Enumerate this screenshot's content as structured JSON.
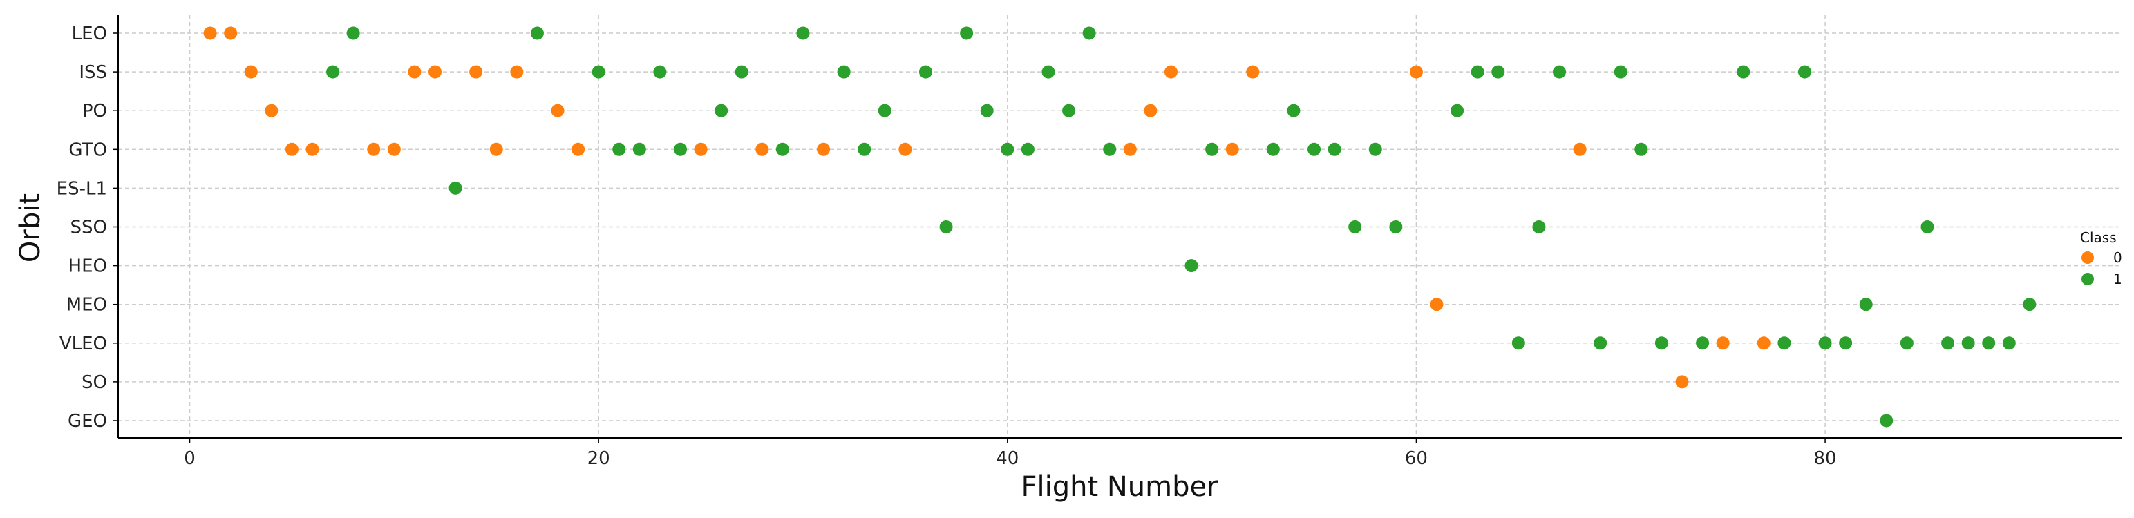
{
  "chart_data": {
    "type": "scatter",
    "xlabel": "Flight Number",
    "ylabel": "Orbit",
    "xlim": [
      -3.5,
      94.5
    ],
    "xticks": [
      0,
      20,
      40,
      60,
      80
    ],
    "categories": [
      "LEO",
      "ISS",
      "PO",
      "GTO",
      "ES-L1",
      "SSO",
      "HEO",
      "MEO",
      "VLEO",
      "SO",
      "GEO"
    ],
    "grid": true,
    "legend": {
      "title": "Class",
      "position": "right"
    },
    "colors": {
      "0": "#ff7f0e",
      "1": "#2ca02c"
    },
    "series": [
      {
        "name": "0",
        "points": [
          {
            "x": 1,
            "y": "LEO"
          },
          {
            "x": 2,
            "y": "LEO"
          },
          {
            "x": 3,
            "y": "ISS"
          },
          {
            "x": 11,
            "y": "ISS"
          },
          {
            "x": 12,
            "y": "ISS"
          },
          {
            "x": 14,
            "y": "ISS"
          },
          {
            "x": 16,
            "y": "ISS"
          },
          {
            "x": 48,
            "y": "ISS"
          },
          {
            "x": 52,
            "y": "ISS"
          },
          {
            "x": 60,
            "y": "ISS"
          },
          {
            "x": 4,
            "y": "PO"
          },
          {
            "x": 18,
            "y": "PO"
          },
          {
            "x": 47,
            "y": "PO"
          },
          {
            "x": 5,
            "y": "GTO"
          },
          {
            "x": 6,
            "y": "GTO"
          },
          {
            "x": 9,
            "y": "GTO"
          },
          {
            "x": 10,
            "y": "GTO"
          },
          {
            "x": 15,
            "y": "GTO"
          },
          {
            "x": 19,
            "y": "GTO"
          },
          {
            "x": 25,
            "y": "GTO"
          },
          {
            "x": 28,
            "y": "GTO"
          },
          {
            "x": 31,
            "y": "GTO"
          },
          {
            "x": 35,
            "y": "GTO"
          },
          {
            "x": 46,
            "y": "GTO"
          },
          {
            "x": 51,
            "y": "GTO"
          },
          {
            "x": 68,
            "y": "GTO"
          },
          {
            "x": 61,
            "y": "MEO"
          },
          {
            "x": 75,
            "y": "VLEO"
          },
          {
            "x": 77,
            "y": "VLEO"
          },
          {
            "x": 73,
            "y": "SO"
          }
        ]
      },
      {
        "name": "1",
        "points": [
          {
            "x": 8,
            "y": "LEO"
          },
          {
            "x": 17,
            "y": "LEO"
          },
          {
            "x": 30,
            "y": "LEO"
          },
          {
            "x": 38,
            "y": "LEO"
          },
          {
            "x": 44,
            "y": "LEO"
          },
          {
            "x": 7,
            "y": "ISS"
          },
          {
            "x": 20,
            "y": "ISS"
          },
          {
            "x": 23,
            "y": "ISS"
          },
          {
            "x": 27,
            "y": "ISS"
          },
          {
            "x": 32,
            "y": "ISS"
          },
          {
            "x": 36,
            "y": "ISS"
          },
          {
            "x": 42,
            "y": "ISS"
          },
          {
            "x": 63,
            "y": "ISS"
          },
          {
            "x": 64,
            "y": "ISS"
          },
          {
            "x": 67,
            "y": "ISS"
          },
          {
            "x": 70,
            "y": "ISS"
          },
          {
            "x": 76,
            "y": "ISS"
          },
          {
            "x": 79,
            "y": "ISS"
          },
          {
            "x": 26,
            "y": "PO"
          },
          {
            "x": 34,
            "y": "PO"
          },
          {
            "x": 39,
            "y": "PO"
          },
          {
            "x": 43,
            "y": "PO"
          },
          {
            "x": 54,
            "y": "PO"
          },
          {
            "x": 62,
            "y": "PO"
          },
          {
            "x": 21,
            "y": "GTO"
          },
          {
            "x": 22,
            "y": "GTO"
          },
          {
            "x": 24,
            "y": "GTO"
          },
          {
            "x": 29,
            "y": "GTO"
          },
          {
            "x": 33,
            "y": "GTO"
          },
          {
            "x": 40,
            "y": "GTO"
          },
          {
            "x": 41,
            "y": "GTO"
          },
          {
            "x": 45,
            "y": "GTO"
          },
          {
            "x": 50,
            "y": "GTO"
          },
          {
            "x": 53,
            "y": "GTO"
          },
          {
            "x": 55,
            "y": "GTO"
          },
          {
            "x": 56,
            "y": "GTO"
          },
          {
            "x": 58,
            "y": "GTO"
          },
          {
            "x": 71,
            "y": "GTO"
          },
          {
            "x": 13,
            "y": "ES-L1"
          },
          {
            "x": 37,
            "y": "SSO"
          },
          {
            "x": 57,
            "y": "SSO"
          },
          {
            "x": 59,
            "y": "SSO"
          },
          {
            "x": 66,
            "y": "SSO"
          },
          {
            "x": 85,
            "y": "SSO"
          },
          {
            "x": 49,
            "y": "HEO"
          },
          {
            "x": 82,
            "y": "MEO"
          },
          {
            "x": 90,
            "y": "MEO"
          },
          {
            "x": 65,
            "y": "VLEO"
          },
          {
            "x": 69,
            "y": "VLEO"
          },
          {
            "x": 72,
            "y": "VLEO"
          },
          {
            "x": 74,
            "y": "VLEO"
          },
          {
            "x": 78,
            "y": "VLEO"
          },
          {
            "x": 80,
            "y": "VLEO"
          },
          {
            "x": 81,
            "y": "VLEO"
          },
          {
            "x": 84,
            "y": "VLEO"
          },
          {
            "x": 86,
            "y": "VLEO"
          },
          {
            "x": 87,
            "y": "VLEO"
          },
          {
            "x": 88,
            "y": "VLEO"
          },
          {
            "x": 89,
            "y": "VLEO"
          },
          {
            "x": 83,
            "y": "GEO"
          }
        ]
      }
    ]
  }
}
